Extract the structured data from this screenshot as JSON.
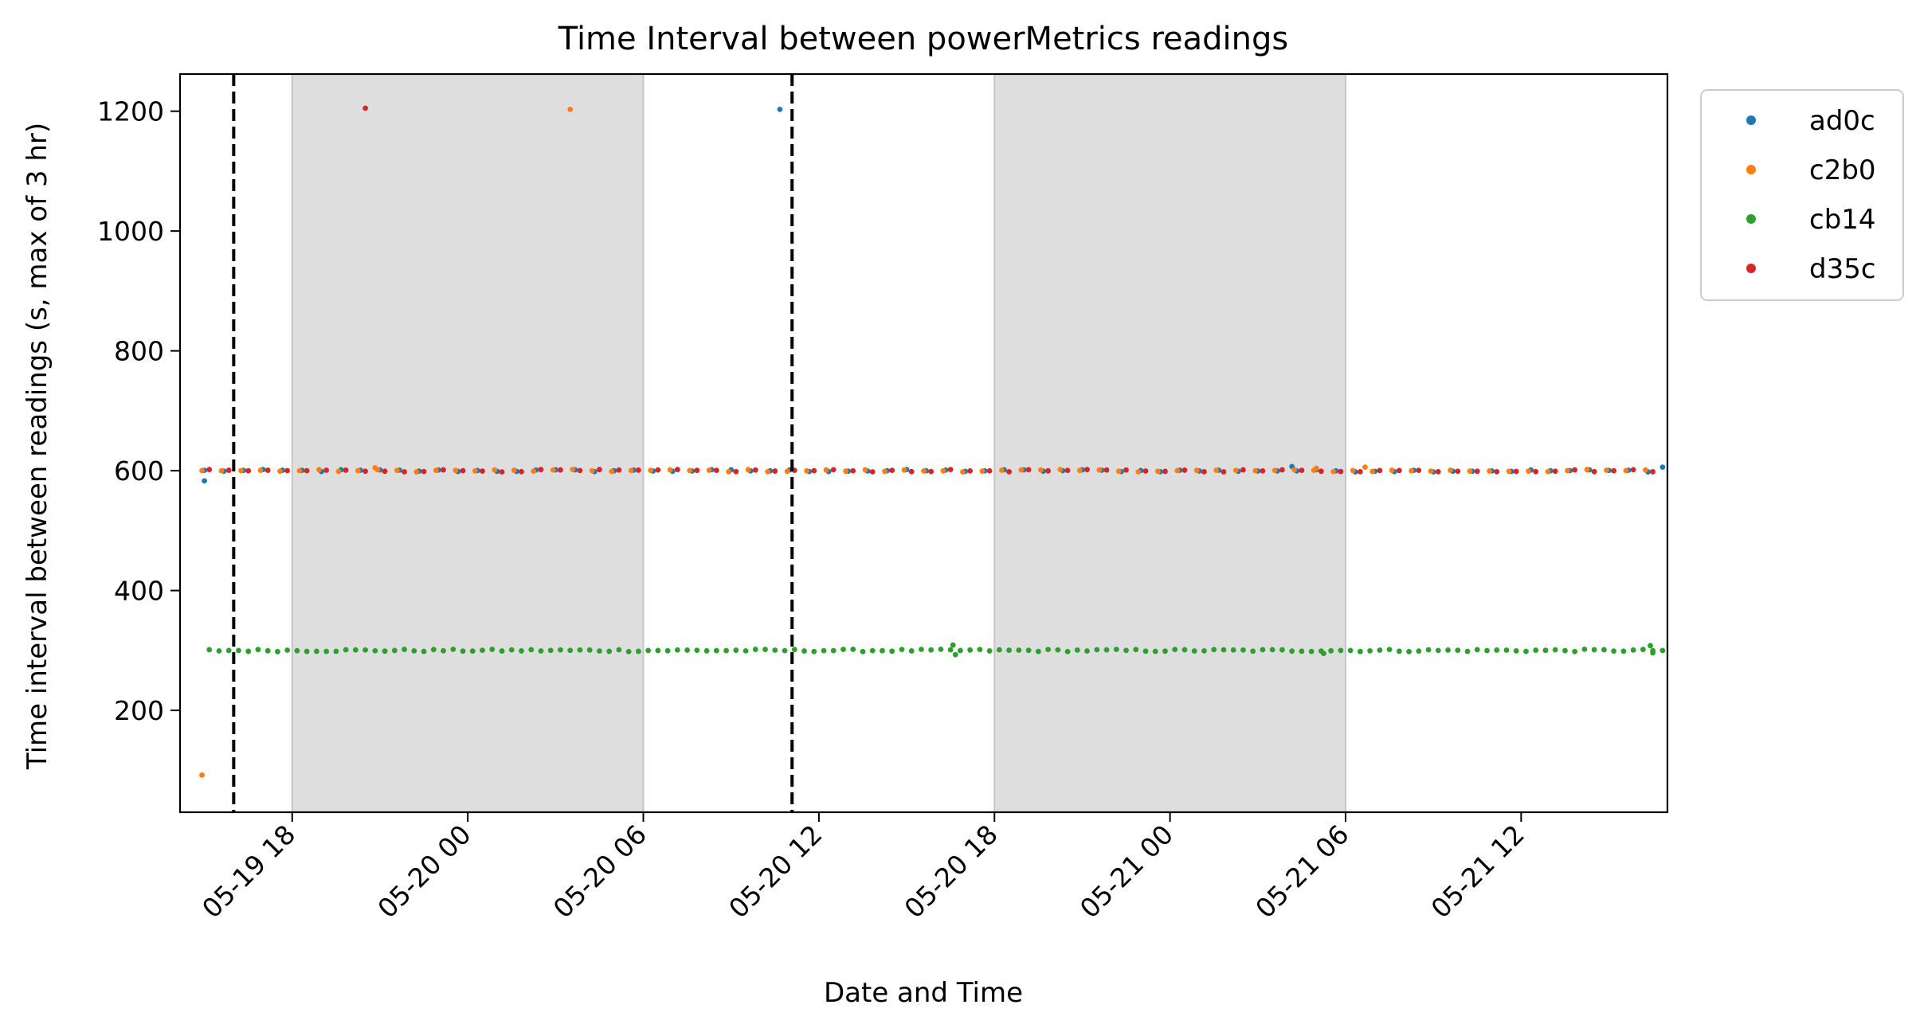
{
  "chart_data": {
    "type": "scatter",
    "title": "Time Interval between powerMetrics readings",
    "xlabel": "Date and Time",
    "ylabel": "Time interval between readings (s, max of 3 hr)",
    "x_range": [
      "2024-05-19 14:10",
      "2024-05-21 17:00"
    ],
    "x_ticks": [
      {
        "label": "05-19 18",
        "date": "2024-05-19 18:00"
      },
      {
        "label": "05-20 00",
        "date": "2024-05-20 00:00"
      },
      {
        "label": "05-20 06",
        "date": "2024-05-20 06:00"
      },
      {
        "label": "05-20 12",
        "date": "2024-05-20 12:00"
      },
      {
        "label": "05-20 18",
        "date": "2024-05-20 18:00"
      },
      {
        "label": "05-21 00",
        "date": "2024-05-21 00:00"
      },
      {
        "label": "05-21 06",
        "date": "2024-05-21 06:00"
      },
      {
        "label": "05-21 12",
        "date": "2024-05-21 12:00"
      }
    ],
    "ylim": [
      30,
      1262
    ],
    "y_ticks": [
      200,
      400,
      600,
      800,
      1000,
      1200
    ],
    "grid": false,
    "legend_position": "outside upper-right",
    "shaded_regions": [
      {
        "start": "2024-05-19 18:00",
        "end": "2024-05-20 06:00",
        "color": "#dedede"
      },
      {
        "start": "2024-05-20 18:00",
        "end": "2024-05-21 06:00",
        "color": "#dedede"
      }
    ],
    "vertical_lines": [
      {
        "x": "2024-05-19 16:00",
        "style": "dashed",
        "color": "#000000"
      },
      {
        "x": "2024-05-20 11:05",
        "style": "dashed",
        "color": "#000000"
      }
    ],
    "series": [
      {
        "name": "ad0c",
        "color": "#1f77b4",
        "base_value": 600,
        "start": "2024-05-19 15:00",
        "end": "2024-05-21 16:50",
        "outliers": [
          {
            "x": "2024-05-19 15:00",
            "y": 583
          },
          {
            "x": "2024-05-20 10:40",
            "y": 1203
          },
          {
            "x": "2024-05-21 04:10",
            "y": 607
          },
          {
            "x": "2024-05-21 16:50",
            "y": 606
          }
        ]
      },
      {
        "name": "c2b0",
        "color": "#ff7f0e",
        "base_value": 600,
        "start": "2024-05-19 14:55",
        "end": "2024-05-21 16:40",
        "outliers": [
          {
            "x": "2024-05-19 14:55",
            "y": 92
          },
          {
            "x": "2024-05-20 03:30",
            "y": 1203
          },
          {
            "x": "2024-05-19 20:50",
            "y": 605
          },
          {
            "x": "2024-05-21 06:40",
            "y": 606
          },
          {
            "x": "2024-05-21 05:00",
            "y": 604
          }
        ]
      },
      {
        "name": "cb14",
        "color": "#2ca02c",
        "base_value": 300,
        "start": "2024-05-19 15:10",
        "end": "2024-05-21 16:50",
        "outliers": [
          {
            "x": "2024-05-20 16:40",
            "y": 293
          },
          {
            "x": "2024-05-20 16:35",
            "y": 309
          },
          {
            "x": "2024-05-21 05:15",
            "y": 295
          },
          {
            "x": "2024-05-21 16:30",
            "y": 296
          },
          {
            "x": "2024-05-21 16:25",
            "y": 308
          }
        ]
      },
      {
        "name": "d35c",
        "color": "#d62728",
        "base_value": 600,
        "start": "2024-05-19 15:10",
        "end": "2024-05-21 16:50",
        "outliers": [
          {
            "x": "2024-05-19 20:30",
            "y": 1205
          }
        ]
      }
    ]
  }
}
